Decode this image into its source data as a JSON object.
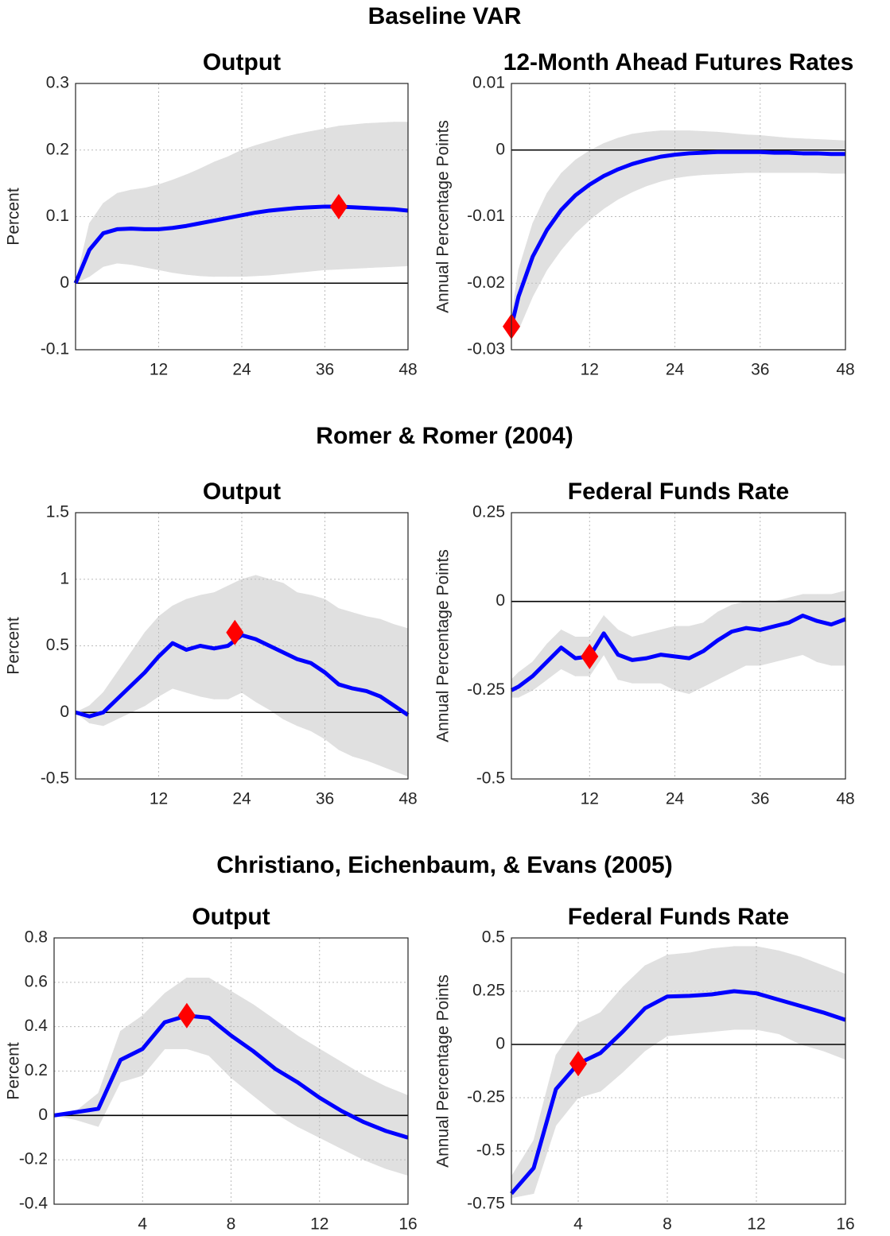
{
  "section_titles": [
    "Baseline VAR",
    "Romer & Romer (2004)",
    "Christiano, Eichenbaum, & Evans (2005)"
  ],
  "chart_data": [
    {
      "type": "line",
      "title": "Output",
      "ylabel": "Percent",
      "grid": true,
      "xlim": [
        0,
        48
      ],
      "xticks": [
        12,
        24,
        36,
        48
      ],
      "ylim": [
        -0.1,
        0.3
      ],
      "yticks": [
        -0.1,
        0,
        0.1,
        0.2,
        0.3
      ],
      "x": [
        0,
        2,
        4,
        6,
        8,
        10,
        12,
        14,
        16,
        18,
        20,
        22,
        24,
        26,
        28,
        30,
        32,
        34,
        36,
        38,
        40,
        42,
        44,
        46,
        48
      ],
      "line": {
        "color": "#0000ff",
        "values": [
          0,
          0.05,
          0.075,
          0.081,
          0.082,
          0.081,
          0.081,
          0.083,
          0.086,
          0.09,
          0.094,
          0.098,
          0.102,
          0.106,
          0.109,
          0.111,
          0.113,
          0.114,
          0.115,
          0.115,
          0.114,
          0.113,
          0.112,
          0.111,
          0.109
        ]
      },
      "band": {
        "color": "#e0e0e0",
        "upper": [
          0,
          0.09,
          0.12,
          0.135,
          0.14,
          0.143,
          0.148,
          0.155,
          0.163,
          0.172,
          0.182,
          0.19,
          0.2,
          0.207,
          0.213,
          0.219,
          0.224,
          0.228,
          0.232,
          0.236,
          0.238,
          0.24,
          0.241,
          0.242,
          0.242
        ],
        "lower": [
          0,
          0.01,
          0.025,
          0.03,
          0.028,
          0.024,
          0.02,
          0.016,
          0.013,
          0.011,
          0.01,
          0.01,
          0.01,
          0.011,
          0.012,
          0.014,
          0.016,
          0.018,
          0.02,
          0.021,
          0.022,
          0.023,
          0.024,
          0.025,
          0.026
        ]
      },
      "marker": {
        "x": 38,
        "y": 0.115,
        "color": "#ff0000"
      }
    },
    {
      "type": "line",
      "title": "12-Month Ahead Futures Rates",
      "ylabel": "Annual Percentage Points",
      "grid": true,
      "xlim": [
        1,
        48
      ],
      "xticks": [
        12,
        24,
        36,
        48
      ],
      "ylim": [
        -0.03,
        0.01
      ],
      "yticks": [
        -0.03,
        -0.02,
        -0.01,
        0,
        0.01
      ],
      "x": [
        1,
        2,
        4,
        6,
        8,
        10,
        12,
        14,
        16,
        18,
        20,
        22,
        24,
        26,
        28,
        30,
        32,
        34,
        36,
        38,
        40,
        42,
        44,
        46,
        48
      ],
      "line": {
        "color": "#0000ff",
        "values": [
          -0.0265,
          -0.022,
          -0.016,
          -0.012,
          -0.009,
          -0.0068,
          -0.0052,
          -0.0039,
          -0.0029,
          -0.0021,
          -0.0015,
          -0.001,
          -0.0007,
          -0.0005,
          -0.0004,
          -0.0003,
          -0.0003,
          -0.0003,
          -0.0003,
          -0.0004,
          -0.0004,
          -0.0005,
          -0.0005,
          -0.0006,
          -0.0006
        ]
      },
      "band": {
        "color": "#e0e0e0",
        "upper": [
          -0.025,
          -0.018,
          -0.011,
          -0.0065,
          -0.0035,
          -0.0015,
          -0.0001,
          0.001,
          0.0018,
          0.0024,
          0.0027,
          0.0029,
          0.0029,
          0.0029,
          0.0028,
          0.0027,
          0.0025,
          0.0023,
          0.0022,
          0.002,
          0.0018,
          0.0017,
          0.0016,
          0.0015,
          0.0014
        ],
        "lower": [
          -0.028,
          -0.027,
          -0.022,
          -0.018,
          -0.015,
          -0.0125,
          -0.0105,
          -0.0088,
          -0.0074,
          -0.0063,
          -0.0054,
          -0.0047,
          -0.0042,
          -0.0039,
          -0.0037,
          -0.0036,
          -0.0035,
          -0.0034,
          -0.0034,
          -0.0034,
          -0.0034,
          -0.0034,
          -0.0034,
          -0.0035,
          -0.0035
        ]
      },
      "marker": {
        "x": 1,
        "y": -0.0265,
        "color": "#ff0000"
      }
    },
    {
      "type": "line",
      "title": "Output",
      "ylabel": "Percent",
      "grid": true,
      "xlim": [
        0,
        48
      ],
      "xticks": [
        12,
        24,
        36,
        48
      ],
      "ylim": [
        -0.5,
        1.5
      ],
      "yticks": [
        -0.5,
        0,
        0.5,
        1,
        1.5
      ],
      "x": [
        0,
        2,
        4,
        6,
        8,
        10,
        12,
        14,
        16,
        18,
        20,
        22,
        24,
        26,
        28,
        30,
        32,
        34,
        36,
        38,
        40,
        42,
        44,
        46,
        48
      ],
      "line": {
        "color": "#0000ff",
        "values": [
          0,
          -0.03,
          0,
          0.1,
          0.2,
          0.3,
          0.42,
          0.52,
          0.47,
          0.5,
          0.48,
          0.5,
          0.58,
          0.55,
          0.5,
          0.45,
          0.4,
          0.37,
          0.3,
          0.21,
          0.18,
          0.16,
          0.12,
          0.05,
          -0.02
        ]
      },
      "band": {
        "color": "#e0e0e0",
        "upper": [
          0,
          0.05,
          0.15,
          0.3,
          0.45,
          0.6,
          0.72,
          0.8,
          0.85,
          0.88,
          0.9,
          0.95,
          1.0,
          1.03,
          1.0,
          0.97,
          0.9,
          0.88,
          0.85,
          0.78,
          0.75,
          0.72,
          0.7,
          0.66,
          0.63
        ],
        "lower": [
          0,
          -0.08,
          -0.1,
          -0.05,
          0,
          0.05,
          0.12,
          0.18,
          0.15,
          0.12,
          0.1,
          0.1,
          0.15,
          0.08,
          0.02,
          -0.05,
          -0.1,
          -0.14,
          -0.2,
          -0.28,
          -0.33,
          -0.36,
          -0.4,
          -0.44,
          -0.48
        ]
      },
      "marker": {
        "x": 23,
        "y": 0.6,
        "color": "#ff0000"
      }
    },
    {
      "type": "line",
      "title": "Federal Funds Rate",
      "ylabel": "Annual Percentage Points",
      "grid": true,
      "xlim": [
        1,
        48
      ],
      "xticks": [
        12,
        24,
        36,
        48
      ],
      "ylim": [
        -0.5,
        0.25
      ],
      "yticks": [
        -0.5,
        -0.25,
        0,
        0.25
      ],
      "x": [
        1,
        2,
        4,
        6,
        8,
        10,
        12,
        14,
        16,
        18,
        20,
        22,
        24,
        26,
        28,
        30,
        32,
        34,
        36,
        38,
        40,
        42,
        44,
        46,
        48
      ],
      "line": {
        "color": "#0000ff",
        "values": [
          -0.25,
          -0.24,
          -0.21,
          -0.17,
          -0.13,
          -0.16,
          -0.155,
          -0.09,
          -0.15,
          -0.165,
          -0.16,
          -0.15,
          -0.155,
          -0.16,
          -0.14,
          -0.11,
          -0.085,
          -0.075,
          -0.08,
          -0.07,
          -0.06,
          -0.04,
          -0.055,
          -0.065,
          -0.05
        ]
      },
      "band": {
        "color": "#e0e0e0",
        "upper": [
          -0.22,
          -0.2,
          -0.17,
          -0.12,
          -0.08,
          -0.1,
          -0.1,
          -0.04,
          -0.08,
          -0.1,
          -0.09,
          -0.08,
          -0.07,
          -0.07,
          -0.06,
          -0.03,
          -0.01,
          0,
          0,
          0,
          0.01,
          0.02,
          0.02,
          0.02,
          0.03
        ],
        "lower": [
          -0.27,
          -0.27,
          -0.25,
          -0.22,
          -0.19,
          -0.21,
          -0.21,
          -0.15,
          -0.22,
          -0.23,
          -0.23,
          -0.23,
          -0.25,
          -0.26,
          -0.24,
          -0.22,
          -0.2,
          -0.18,
          -0.18,
          -0.17,
          -0.16,
          -0.15,
          -0.17,
          -0.18,
          -0.18
        ]
      },
      "marker": {
        "x": 12,
        "y": -0.155,
        "color": "#ff0000"
      }
    },
    {
      "type": "line",
      "title": "Output",
      "ylabel": "Percent",
      "grid": true,
      "xlim": [
        0,
        16
      ],
      "xticks": [
        4,
        8,
        12,
        16
      ],
      "ylim": [
        -0.4,
        0.8
      ],
      "yticks": [
        -0.4,
        -0.2,
        0,
        0.2,
        0.4,
        0.6,
        0.8
      ],
      "x": [
        0,
        1,
        2,
        3,
        4,
        5,
        6,
        7,
        8,
        9,
        10,
        11,
        12,
        13,
        14,
        15,
        16
      ],
      "line": {
        "color": "#0000ff",
        "values": [
          0,
          0.015,
          0.03,
          0.25,
          0.3,
          0.42,
          0.45,
          0.44,
          0.36,
          0.29,
          0.21,
          0.15,
          0.08,
          0.02,
          -0.03,
          -0.07,
          -0.1
        ]
      },
      "band": {
        "color": "#e0e0e0",
        "upper": [
          0,
          0.02,
          0.1,
          0.38,
          0.45,
          0.55,
          0.62,
          0.62,
          0.56,
          0.5,
          0.43,
          0.36,
          0.3,
          0.24,
          0.18,
          0.13,
          0.09
        ],
        "lower": [
          0,
          -0.02,
          -0.05,
          0.15,
          0.18,
          0.3,
          0.3,
          0.27,
          0.17,
          0.09,
          0.01,
          -0.05,
          -0.1,
          -0.15,
          -0.2,
          -0.24,
          -0.27
        ]
      },
      "marker": {
        "x": 6,
        "y": 0.45,
        "color": "#ff0000"
      }
    },
    {
      "type": "line",
      "title": "Federal Funds Rate",
      "ylabel": "Annual Percentage Points",
      "grid": true,
      "xlim": [
        1,
        16
      ],
      "xticks": [
        4,
        8,
        12,
        16
      ],
      "ylim": [
        -0.75,
        0.5
      ],
      "yticks": [
        -0.75,
        -0.5,
        -0.25,
        0,
        0.25,
        0.5
      ],
      "x": [
        1,
        2,
        3,
        4,
        5,
        6,
        7,
        8,
        9,
        10,
        11,
        12,
        13,
        14,
        15,
        16
      ],
      "line": {
        "color": "#0000ff",
        "values": [
          -0.7,
          -0.58,
          -0.21,
          -0.09,
          -0.04,
          0.06,
          0.17,
          0.225,
          0.228,
          0.235,
          0.25,
          0.24,
          0.21,
          0.18,
          0.15,
          0.115
        ]
      },
      "band": {
        "color": "#e0e0e0",
        "upper": [
          -0.62,
          -0.45,
          -0.05,
          0.1,
          0.15,
          0.27,
          0.37,
          0.42,
          0.43,
          0.45,
          0.46,
          0.46,
          0.44,
          0.41,
          0.37,
          0.33
        ],
        "lower": [
          -0.72,
          -0.7,
          -0.38,
          -0.25,
          -0.22,
          -0.13,
          -0.03,
          0.04,
          0.05,
          0.06,
          0.07,
          0.07,
          0.05,
          0,
          -0.03,
          -0.07
        ]
      },
      "marker": {
        "x": 4,
        "y": -0.09,
        "color": "#ff0000"
      }
    }
  ]
}
